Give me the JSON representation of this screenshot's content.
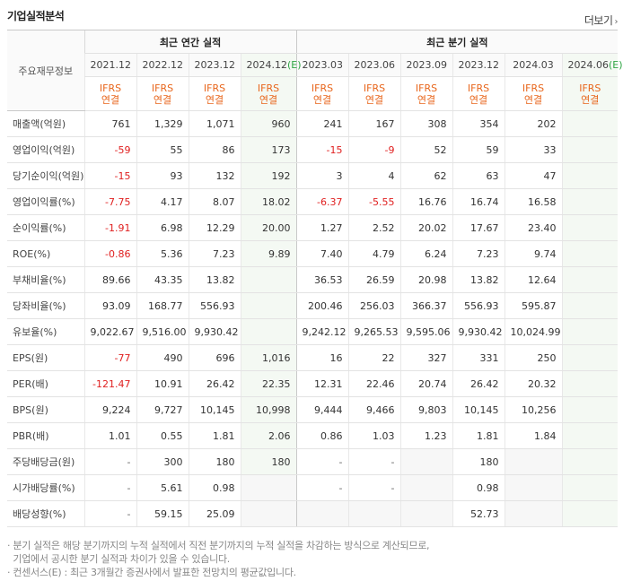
{
  "section_title": "기업실적분석",
  "more_link": "더보기",
  "row_header_label": "주요재무정보",
  "groups": [
    "최근 연간 실적",
    "최근 분기 실적"
  ],
  "periods": [
    "2021.12",
    "2022.12",
    "2023.12",
    "2024.12(E)",
    "2023.03",
    "2023.06",
    "2023.09",
    "2023.12",
    "2024.03",
    "2024.06(E)"
  ],
  "standard": [
    "IFRS",
    "연결"
  ],
  "rows": [
    {
      "label": "매출액(억원)",
      "values": [
        "761",
        "1,329",
        "1,071",
        "960",
        "241",
        "167",
        "308",
        "354",
        "202",
        ""
      ]
    },
    {
      "label": "영업이익(억원)",
      "values": [
        "-59",
        "55",
        "86",
        "173",
        "-15",
        "-9",
        "52",
        "59",
        "33",
        ""
      ]
    },
    {
      "label": "당기순이익(억원)",
      "values": [
        "-15",
        "93",
        "132",
        "192",
        "3",
        "4",
        "62",
        "63",
        "47",
        ""
      ]
    },
    {
      "label": "영업이익률(%)",
      "values": [
        "-7.75",
        "4.17",
        "8.07",
        "18.02",
        "-6.37",
        "-5.55",
        "16.76",
        "16.74",
        "16.58",
        ""
      ]
    },
    {
      "label": "순이익률(%)",
      "values": [
        "-1.91",
        "6.98",
        "12.29",
        "20.00",
        "1.27",
        "2.52",
        "20.02",
        "17.67",
        "23.40",
        ""
      ]
    },
    {
      "label": "ROE(%)",
      "values": [
        "-0.86",
        "5.36",
        "7.23",
        "9.89",
        "7.40",
        "4.79",
        "6.24",
        "7.23",
        "9.74",
        ""
      ]
    },
    {
      "label": "부채비율(%)",
      "values": [
        "89.66",
        "43.35",
        "13.82",
        "",
        "36.53",
        "26.59",
        "20.98",
        "13.82",
        "12.64",
        ""
      ]
    },
    {
      "label": "당좌비율(%)",
      "values": [
        "93.09",
        "168.77",
        "556.93",
        "",
        "200.46",
        "256.03",
        "366.37",
        "556.93",
        "595.87",
        ""
      ]
    },
    {
      "label": "유보율(%)",
      "values": [
        "9,022.67",
        "9,516.00",
        "9,930.42",
        "",
        "9,242.12",
        "9,265.53",
        "9,595.06",
        "9,930.42",
        "10,024.99",
        ""
      ]
    },
    {
      "label": "EPS(원)",
      "values": [
        "-77",
        "490",
        "696",
        "1,016",
        "16",
        "22",
        "327",
        "331",
        "250",
        ""
      ]
    },
    {
      "label": "PER(배)",
      "values": [
        "-121.47",
        "10.91",
        "26.42",
        "22.35",
        "12.31",
        "22.46",
        "20.74",
        "26.42",
        "20.32",
        ""
      ]
    },
    {
      "label": "BPS(원)",
      "values": [
        "9,224",
        "9,727",
        "10,145",
        "10,998",
        "9,444",
        "9,466",
        "9,803",
        "10,145",
        "10,256",
        ""
      ]
    },
    {
      "label": "PBR(배)",
      "values": [
        "1.01",
        "0.55",
        "1.81",
        "2.06",
        "0.86",
        "1.03",
        "1.23",
        "1.81",
        "1.84",
        ""
      ]
    },
    {
      "label": "주당배당금(원)",
      "values": [
        "-",
        "300",
        "180",
        "180",
        "-",
        "-",
        "",
        "180",
        "",
        ""
      ]
    },
    {
      "label": "시가배당률(%)",
      "values": [
        "-",
        "5.61",
        "0.98",
        "",
        "-",
        "-",
        "",
        "0.98",
        "",
        ""
      ]
    },
    {
      "label": "배당성향(%)",
      "values": [
        "-",
        "59.15",
        "25.09",
        "",
        "",
        "",
        "",
        "52.73",
        "",
        ""
      ]
    }
  ],
  "notes": [
    "· 분기 실적은 해당 분기까지의 누적 실적에서 직전 분기까지의 누적 실적을 차감하는 방식으로 계산되므로,",
    "  기업에서 공시한 분기 실적과 차이가 있을 수 있습니다.",
    "· 컨센서스(E) : 최근 3개월간 증권사에서 발표한 전망치의 평균값입니다."
  ]
}
